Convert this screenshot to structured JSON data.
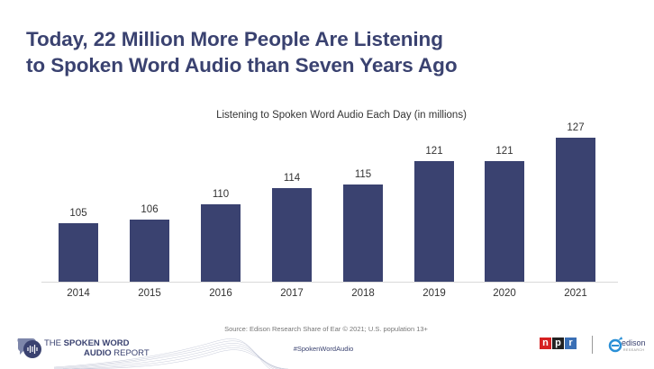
{
  "header": {
    "title_line1": "Today, 22 Million More People Are Listening",
    "title_line2": "to Spoken Word Audio than Seven Years Ago"
  },
  "chart_data": {
    "type": "bar",
    "title": "Listening to Spoken Word Audio Each Day (in millions)",
    "categories": [
      "2014",
      "2015",
      "2016",
      "2017",
      "2018",
      "2019",
      "2020",
      "2021"
    ],
    "values": [
      105,
      106,
      110,
      114,
      115,
      121,
      121,
      127
    ],
    "xlabel": "",
    "ylabel": "",
    "ylim": [
      90,
      130
    ],
    "grid": false,
    "legend": null,
    "data_labels": true,
    "bar_color": "#3a4270"
  },
  "bars": [
    {
      "year": "2014",
      "value": "105"
    },
    {
      "year": "2015",
      "value": "106"
    },
    {
      "year": "2016",
      "value": "110"
    },
    {
      "year": "2017",
      "value": "114"
    },
    {
      "year": "2018",
      "value": "115"
    },
    {
      "year": "2019",
      "value": "121"
    },
    {
      "year": "2020",
      "value": "121"
    },
    {
      "year": "2021",
      "value": "127"
    }
  ],
  "footer": {
    "source": "Source: Edison Research Share of Ear © 2021; U.S. population 13+",
    "hashtag": "#SpokenWordAudio",
    "report_logo_line1_prefix": "THE ",
    "report_logo_line1_bold": "SPOKEN WORD",
    "report_logo_line2_bold": "AUDIO",
    "report_logo_line2_suffix": " REPORT",
    "npr_letters": [
      "n",
      "p",
      "r"
    ],
    "npr_colors": [
      "#d62021",
      "#222222",
      "#3a6fb5"
    ],
    "edison_name": "edison",
    "edison_sub": "RESEARCH"
  },
  "colors": {
    "brand_navy": "#3a4270",
    "text_gray": "#333333"
  }
}
